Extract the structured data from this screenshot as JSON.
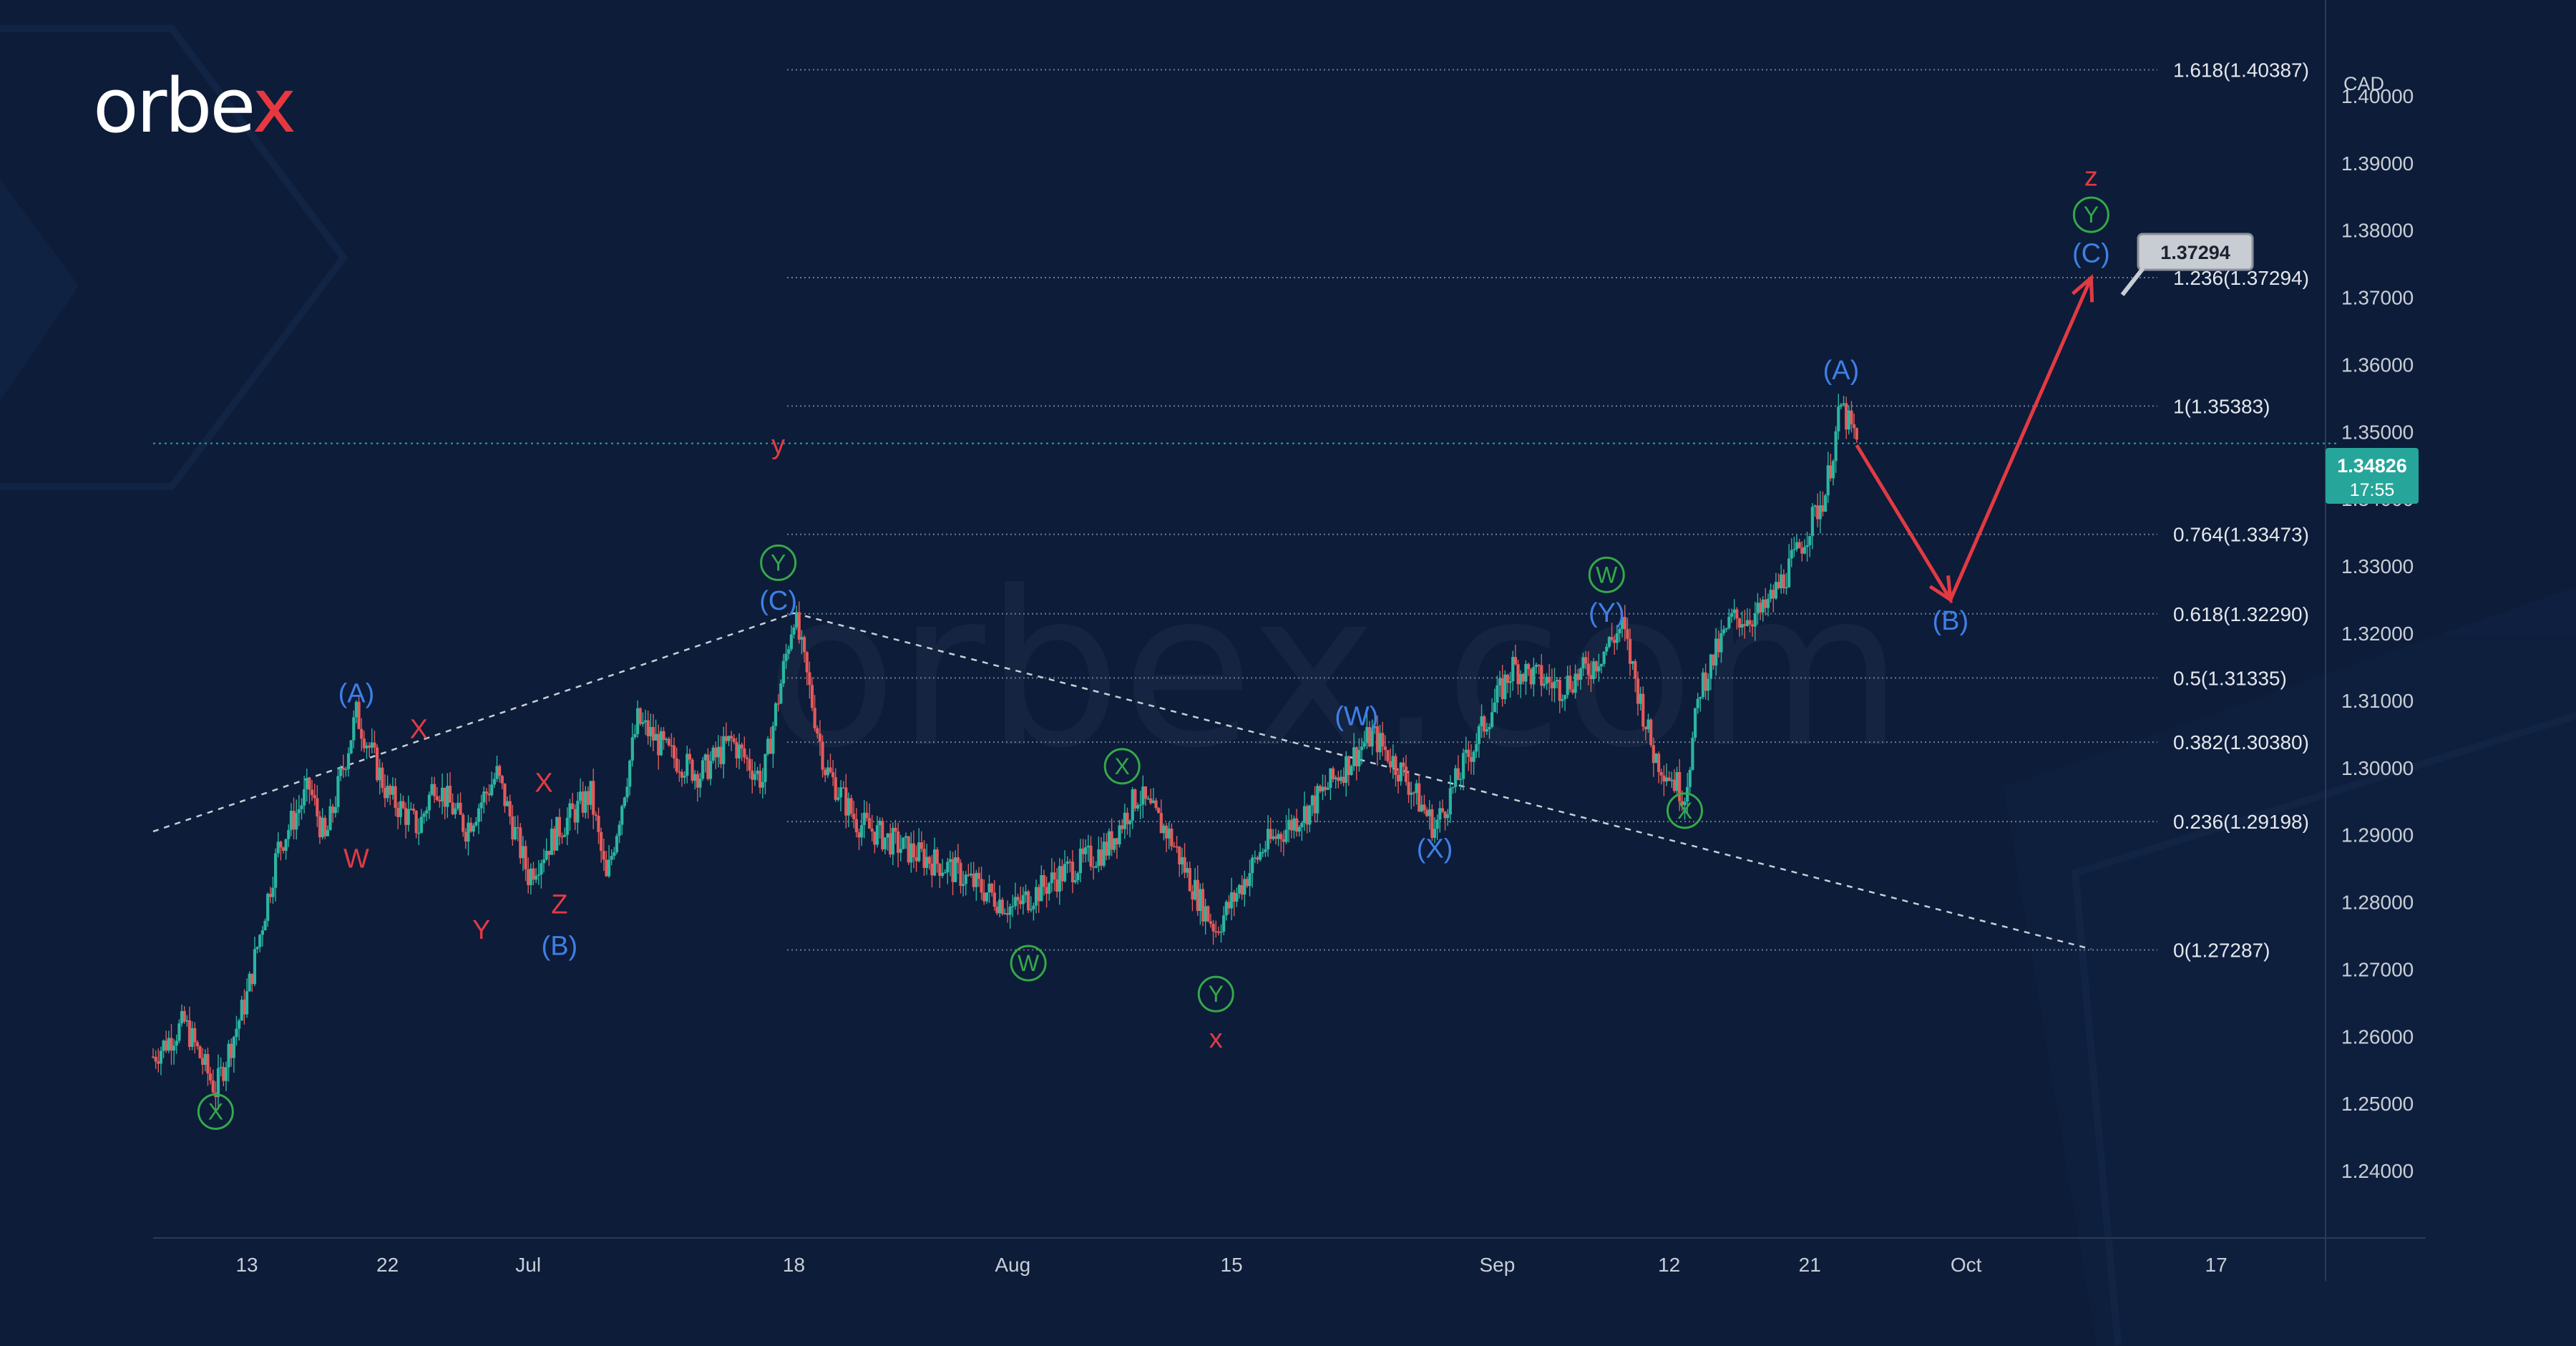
{
  "brand": {
    "name_main": "orbe",
    "name_accent": "x",
    "watermark": "orbex.com"
  },
  "currency": "CAD",
  "colors": {
    "background": "#0c1c39",
    "up": "#2bb5a0",
    "down": "#e25a5a",
    "wave_blue": "#3f7fe6",
    "wave_red": "#e23a43",
    "wave_green": "#35a84a",
    "price_tag": "#26a69a",
    "level_line": "#6f7a8c",
    "axis_text": "#c9ced6"
  },
  "chart_data": {
    "type": "line",
    "title": "",
    "y_range": [
      1.23,
      1.41
    ],
    "y_ticks": [
      1.24,
      1.25,
      1.26,
      1.27,
      1.28,
      1.29,
      1.3,
      1.31,
      1.32,
      1.33,
      1.34,
      1.35,
      1.36,
      1.37,
      1.38,
      1.39,
      1.4
    ],
    "x_range": [
      "2022-06-07",
      "2022-10-24"
    ],
    "x_ticks": [
      {
        "date": "2022-06-13",
        "label": "13"
      },
      {
        "date": "2022-06-22",
        "label": "22"
      },
      {
        "date": "2022-07-01",
        "label": "Jul"
      },
      {
        "date": "2022-07-18",
        "label": "18"
      },
      {
        "date": "2022-08-01",
        "label": "Aug"
      },
      {
        "date": "2022-08-15",
        "label": "15"
      },
      {
        "date": "2022-09-01",
        "label": "Sep"
      },
      {
        "date": "2022-09-12",
        "label": "12"
      },
      {
        "date": "2022-09-21",
        "label": "21"
      },
      {
        "date": "2022-10-01",
        "label": "Oct"
      },
      {
        "date": "2022-10-17",
        "label": "17"
      }
    ],
    "price_path": [
      [
        "2022-06-07",
        1.257
      ],
      [
        "2022-06-09",
        1.262
      ],
      [
        "2022-06-11",
        1.252
      ],
      [
        "2022-06-13",
        1.266
      ],
      [
        "2022-06-15",
        1.288
      ],
      [
        "2022-06-17",
        1.297
      ],
      [
        "2022-06-18",
        1.289
      ],
      [
        "2022-06-20",
        1.308
      ],
      [
        "2022-06-22",
        1.296
      ],
      [
        "2022-06-24",
        1.291
      ],
      [
        "2022-06-25",
        1.298
      ],
      [
        "2022-06-27",
        1.291
      ],
      [
        "2022-06-29",
        1.299
      ],
      [
        "2022-07-01",
        1.284
      ],
      [
        "2022-07-03",
        1.291
      ],
      [
        "2022-07-05",
        1.296
      ],
      [
        "2022-07-06",
        1.283
      ],
      [
        "2022-07-08",
        1.307
      ],
      [
        "2022-07-10",
        1.302
      ],
      [
        "2022-07-12",
        1.299
      ],
      [
        "2022-07-14",
        1.304
      ],
      [
        "2022-07-16",
        1.298
      ],
      [
        "2022-07-18",
        1.323
      ],
      [
        "2022-07-20",
        1.3
      ],
      [
        "2022-07-22",
        1.292
      ],
      [
        "2022-07-25",
        1.288
      ],
      [
        "2022-07-28",
        1.285
      ],
      [
        "2022-08-01",
        1.279
      ],
      [
        "2022-08-04",
        1.284
      ],
      [
        "2022-08-07",
        1.288
      ],
      [
        "2022-08-09",
        1.296
      ],
      [
        "2022-08-11",
        1.29
      ],
      [
        "2022-08-13",
        1.28
      ],
      [
        "2022-08-14",
        1.276
      ],
      [
        "2022-08-17",
        1.288
      ],
      [
        "2022-08-20",
        1.294
      ],
      [
        "2022-08-24",
        1.305
      ],
      [
        "2022-08-26",
        1.299
      ],
      [
        "2022-08-28",
        1.291
      ],
      [
        "2022-08-30",
        1.301
      ],
      [
        "2022-09-02",
        1.315
      ],
      [
        "2022-09-05",
        1.312
      ],
      [
        "2022-09-07",
        1.315
      ],
      [
        "2022-09-09",
        1.321
      ],
      [
        "2022-09-11",
        1.302
      ],
      [
        "2022-09-13",
        1.296
      ],
      [
        "2022-09-14",
        1.312
      ],
      [
        "2022-09-16",
        1.322
      ],
      [
        "2022-09-18",
        1.323
      ],
      [
        "2022-09-20",
        1.331
      ],
      [
        "2022-09-22",
        1.341
      ],
      [
        "2022-09-23",
        1.3538
      ],
      [
        "2022-09-24",
        1.3483
      ]
    ],
    "current_price": {
      "value": "1.34826",
      "countdown": "17:55"
    },
    "fib_levels": [
      {
        "label": "1.618(1.40387)",
        "value": 1.40387
      },
      {
        "label": "1.236(1.37294)",
        "value": 1.37294
      },
      {
        "label": "1(1.35383)",
        "value": 1.35383
      },
      {
        "label": "0.764(1.33473)",
        "value": 1.33473
      },
      {
        "label": "0.618(1.32290)",
        "value": 1.3229
      },
      {
        "label": "0.5(1.31335)",
        "value": 1.31335
      },
      {
        "label": "0.382(1.30380)",
        "value": 1.3038
      },
      {
        "label": "0.236(1.29198)",
        "value": 1.29198
      },
      {
        "label": "0(1.27287)",
        "value": 1.27287
      }
    ],
    "target_callout": "1.37294",
    "projection": [
      [
        "2022-09-24",
        1.348
      ],
      [
        "2022-09-30",
        1.325
      ],
      [
        "2022-10-09",
        1.3729
      ]
    ],
    "trendlines": [
      {
        "from": [
          "2022-06-07",
          1.2905
        ],
        "to": [
          "2022-07-18",
          1.323
        ]
      },
      {
        "from": [
          "2022-07-18",
          1.323
        ],
        "to": [
          "2022-10-09",
          1.273
        ]
      }
    ],
    "wave_labels": [
      {
        "text": "X",
        "color": "green",
        "circle": true,
        "date": "2022-06-11",
        "value": 1.2488
      },
      {
        "text": "(A)",
        "color": "blue",
        "date": "2022-06-20",
        "value": 1.3111
      },
      {
        "text": "X",
        "color": "red",
        "date": "2022-06-24",
        "value": 1.3058
      },
      {
        "text": "W",
        "color": "red",
        "date": "2022-06-20",
        "value": 1.2865
      },
      {
        "text": "Y",
        "color": "red",
        "date": "2022-06-28",
        "value": 1.2759
      },
      {
        "text": "X",
        "color": "red",
        "date": "2022-07-02",
        "value": 1.2978
      },
      {
        "text": "Z",
        "color": "red",
        "date": "2022-07-03",
        "value": 1.2797
      },
      {
        "text": "(B)",
        "color": "blue",
        "date": "2022-07-03",
        "value": 1.2735
      },
      {
        "text": "y",
        "color": "red",
        "date": "2022-07-17",
        "value": 1.3481
      },
      {
        "text": "Y",
        "color": "green",
        "circle": true,
        "date": "2022-07-17",
        "value": 1.3305
      },
      {
        "text": "(C)",
        "color": "blue",
        "date": "2022-07-17",
        "value": 1.3249
      },
      {
        "text": "W",
        "color": "green",
        "circle": true,
        "date": "2022-08-02",
        "value": 1.2709
      },
      {
        "text": "X",
        "color": "green",
        "circle": true,
        "date": "2022-08-08",
        "value": 1.3002
      },
      {
        "text": "Y",
        "color": "green",
        "circle": true,
        "date": "2022-08-14",
        "value": 1.2663
      },
      {
        "text": "x",
        "color": "red",
        "date": "2022-08-14",
        "value": 1.2597
      },
      {
        "text": "(W)",
        "color": "blue",
        "date": "2022-08-23",
        "value": 1.3077
      },
      {
        "text": "(X)",
        "color": "blue",
        "date": "2022-08-28",
        "value": 1.288
      },
      {
        "text": "W",
        "color": "green",
        "circle": true,
        "date": "2022-09-08",
        "value": 1.3287
      },
      {
        "text": "(Y)",
        "color": "blue",
        "date": "2022-09-08",
        "value": 1.3231
      },
      {
        "text": "X",
        "color": "green",
        "circle": true,
        "date": "2022-09-13",
        "value": 1.2936
      },
      {
        "text": "(A)",
        "color": "blue",
        "date": "2022-09-23",
        "value": 1.3592
      },
      {
        "text": "(B)",
        "color": "blue",
        "date": "2022-09-30",
        "value": 1.3219
      },
      {
        "text": "z",
        "color": "red",
        "date": "2022-10-09",
        "value": 1.388
      },
      {
        "text": "Y",
        "color": "green",
        "circle": true,
        "date": "2022-10-09",
        "value": 1.3823
      },
      {
        "text": "(C)",
        "color": "blue",
        "date": "2022-10-09",
        "value": 1.3766
      }
    ]
  }
}
